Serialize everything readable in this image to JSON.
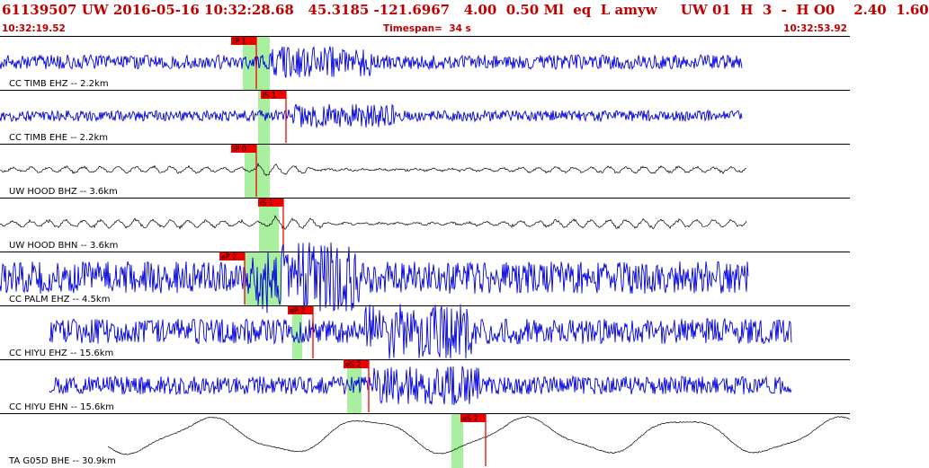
{
  "header": {
    "title": "61139507 UW 2016-05-16 10:32:28.68   45.3185 -121.6967   4.00  0.50 Ml  eq  L amyw     UW 01  H  3  -  H O0    2.40  1.60",
    "start_time": "10:32:19.52",
    "timespan": "Timespan=  34 s",
    "end_time": "10:32:53.92"
  },
  "colors": {
    "title": "#c00000",
    "trace_blue": "#0000dd",
    "trace_black": "#000000",
    "pick_bar": "#ee0000",
    "pick_window": "#a8f0a0"
  },
  "traces": [
    {
      "label": "CC TIMB EHZ -- 2.2km",
      "color": "blue",
      "amp": 8,
      "noise": "hf",
      "start": 0,
      "end": 825,
      "quake": 300,
      "picks": [
        {
          "tag": "iP 1"
        }
      ]
    },
    {
      "label": "CC TIMB EHE -- 2.2km",
      "color": "blue",
      "amp": 6,
      "noise": "hf",
      "start": 0,
      "end": 825,
      "quake": 320,
      "picks": [
        {
          "tag": "iS 1"
        }
      ]
    },
    {
      "label": "UW HOOD BHZ -- 3.6km",
      "color": "black",
      "amp": 4,
      "noise": "lf",
      "start": 0,
      "end": 830,
      "quake": 285,
      "picks": [
        {
          "tag": "iP 0"
        }
      ]
    },
    {
      "label": "UW HOOD BHN -- 3.6km",
      "color": "black",
      "amp": 5,
      "noise": "lf",
      "start": 0,
      "end": 830,
      "quake": 300,
      "picks": [
        {
          "tag": "iS 1"
        }
      ]
    },
    {
      "label": "CC PALM EHZ -- 4.5km",
      "color": "blue",
      "amp": 18,
      "noise": "hf",
      "start": 0,
      "end": 832,
      "quake": 280,
      "picks": [
        {
          "tag": "eP 2"
        }
      ]
    },
    {
      "label": "CC HIYU EHZ -- 15.6km",
      "color": "blue",
      "amp": 14,
      "noise": "hf",
      "start": 55,
      "end": 880,
      "quake": 405,
      "picks": [
        {
          "tag": "eP 2"
        }
      ]
    },
    {
      "label": "CC HIYU EHN -- 15.6km",
      "color": "blue",
      "amp": 10,
      "noise": "hf",
      "start": 55,
      "end": 880,
      "quake": 415,
      "picks": [
        {
          "tag": "eS 2"
        }
      ]
    },
    {
      "label": "TA G05D BHE -- 30.9km",
      "color": "black",
      "amp": 24,
      "noise": "swell",
      "start": 120,
      "end": 945,
      "quake": 520,
      "picks": [
        {
          "tag": "eS 2"
        }
      ]
    }
  ]
}
